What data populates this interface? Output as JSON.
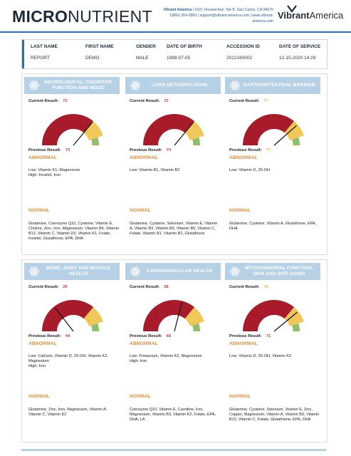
{
  "header": {
    "brand_bold": "MICRO",
    "brand_light": "NUTRIENT",
    "lab_name": "Vibrant America",
    "lab_address": "1021 Howard Ave. Ste B. San Carlos, CA 94070",
    "lab_contact": "1(866) 364-0963 | support@vibrant-america.com | www.vibrant-america.com",
    "logo_bold": "Vibrant",
    "logo_light": "America"
  },
  "patient": {
    "last_name_label": "LAST NAME",
    "last_name": "REPORT",
    "first_name_label": "FIRST NAME",
    "first_name": "DEMO",
    "gender_label": "GENDER",
    "gender": "MALE",
    "dob_label": "DATE OF BIRTH",
    "dob": "1998-07-05",
    "accession_label": "ACCESSION ID",
    "accession": "2012160002",
    "service_label": "DATE OF SERVICE",
    "service": "12-15-2020 14:29"
  },
  "labels": {
    "current": "Current Result:",
    "previous": "Previous Result:",
    "abnormal": "ABNORMAL",
    "normal": "NORMAL"
  },
  "colors": {
    "red": "#a81b2a",
    "yellow": "#f0c85a",
    "green": "#8fbf6a",
    "header_bg": "#b6d0e6",
    "accent": "#2c6fb5"
  },
  "cards": [
    {
      "title": "NEUROLOGICAL, COGNITIVE FUNCTION AND MOOD",
      "current": "72",
      "previous": "73",
      "level": 0.72,
      "abnormal": "Low: Vitamin K1, Magnesium\nHigh: Inositol, Iron",
      "normal": "Glutamine, Coenzyme Q10, Cysteine, Vitamin E, Choline, Zinc, Iron, Magnesium, Vitamin B6, Vitamin B12, Vitamin C, Vitamin D3, Vitamin K1, Folate, Inositol, Glutathione, EPA, DHA"
    },
    {
      "title": "LIVER DETOXIFICATION",
      "current": "72",
      "previous": "74",
      "level": 0.72,
      "abnormal": "Low: Vitamin B1, Vitamin B2",
      "normal": "Glutamine, Cysteine, Selenium, Vitamin E, Vitamin A, Vitamin B3, Vitamin B6, Vitamin B5, Vitamin C, Folate, Vitamin B1, Vitamin B2, Glutathione"
    },
    {
      "title": "GASTROINTESTINAL BARRIER",
      "current": "77",
      "previous": "77",
      "level": 0.77,
      "abnormal": "Low: Vitamin D, 25-OH",
      "normal": "Glutamine, Cysteine, Vitamin A, Glutathione, EPA, DHA"
    },
    {
      "title": "BONE, JOINT AND MUSCLE HEALTH",
      "current": "29",
      "previous": "44",
      "level": 0.29,
      "abnormal": "Low: Calcium, Vitamin D, 25-OH, Vitamin K2, Magnesium\nHigh: Iron",
      "normal": "Glutamine, Zinc, Iron, Magnesium, Vitamin A, Vitamin C, Vitamin K2"
    },
    {
      "title": "CARDIOVASCULAR HEALTH",
      "current": "58",
      "previous": "66",
      "level": 0.58,
      "abnormal": "Low: Potassium, Vitamin K2, Magnesium\nHigh: Iron",
      "normal": "Coenzyme Q10, Vitamin E, Carnitine, Iron, Magnesium, Vitamin B3, Vitamin K2, Folate, EPA, DHA, LA"
    },
    {
      "title": "MITOCHONDRIAL FUNCTION, SKIN AND ANTI AGING",
      "current": "78",
      "previous": "71",
      "level": 0.78,
      "abnormal": "Low: Vitamin D, 25-OH, Vitamin K2",
      "normal": "Glutamine, Cysteine, Selenium, Vitamin E, Zinc, Copper, Magnesium, Vitamin A, Vitamin B3, Vitamin B12, Vitamin C, Folate, Glutathione, EPA, DHA"
    }
  ]
}
